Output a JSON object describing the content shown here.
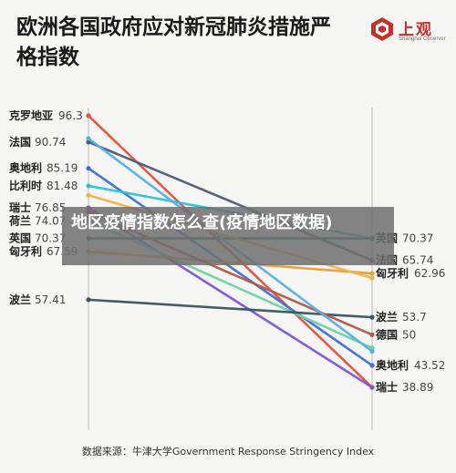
{
  "header": {
    "title": "欧洲各国政府应对新冠肺炎措施严格指数"
  },
  "logo": {
    "name": "上观",
    "subtitle": "Shanghai Observer"
  },
  "overlay": {
    "text": "地区疫情指数怎么查(疫情地区数据)"
  },
  "footer": {
    "source": "数据来源：牛津大学Government Response Stringency Index"
  },
  "colors": {
    "axis": "#bcbcbc",
    "text": "#222222",
    "value_text": "#444444"
  },
  "chart_data": {
    "type": "slope",
    "title": "欧洲各国政府应对新冠肺炎措施严格指数",
    "ylim": [
      35,
      100
    ],
    "series": [
      {
        "name": "克罗地亚",
        "start": 96.3,
        "end": 38.89,
        "end_label": "瑞士",
        "color": "#e8503a"
      },
      {
        "name": "法国",
        "start": 90.74,
        "end": 65.74,
        "end_label": "法国",
        "color": "#4d5d78"
      },
      {
        "name": "奥地利",
        "start": 85.19,
        "end": 43.52,
        "end_label": "奥地利",
        "color": "#3f6fd8"
      },
      {
        "name": "比利时",
        "start": 81.48,
        "end": 70.37,
        "end_label": "英国",
        "color": "#27c4d9"
      },
      {
        "name": "瑞士",
        "start": 76.85,
        "end": 38.89,
        "end_label": "瑞士",
        "color": "#7b58d8"
      },
      {
        "name": "荷兰",
        "start": 74.07,
        "end": 47.22,
        "end_label": "",
        "color": "#6dd3a3"
      },
      {
        "name": "英国",
        "start": 70.37,
        "end": 70.37,
        "end_label": "英国",
        "color": "#2f6e63"
      },
      {
        "name": "匈牙利",
        "start": 67.59,
        "end": 62.96,
        "end_label": "匈牙利",
        "color": "#e89f3a"
      },
      {
        "name": "波兰",
        "start": 57.41,
        "end": 53.7,
        "end_label": "波兰",
        "color": "#3d5560"
      },
      {
        "name": "德国",
        "start": 76.0,
        "end": 50.0,
        "end_label": "德国",
        "color": "#b35a47"
      },
      {
        "name": "",
        "start": 91.5,
        "end": 46.5,
        "end_label": "",
        "color": "#55b1e8"
      },
      {
        "name": "",
        "start": 79.5,
        "end": 62.0,
        "end_label": "",
        "color": "#f0b44a"
      }
    ],
    "left_labels": [
      {
        "name": "克罗地亚",
        "value": "96.3"
      },
      {
        "name": "法国",
        "value": "90.74"
      },
      {
        "name": "奥地利",
        "value": "85.19"
      },
      {
        "name": "比利时",
        "value": "81.48"
      },
      {
        "name": "瑞士",
        "value": "76.85"
      },
      {
        "name": "荷兰",
        "value": "74.07"
      },
      {
        "name": "英国",
        "value": "70.37"
      },
      {
        "name": "匈牙利",
        "value": "67.59"
      },
      {
        "name": "波兰",
        "value": "57.41"
      }
    ],
    "right_labels": [
      {
        "name": "英国",
        "value": "70.37"
      },
      {
        "name": "法国",
        "value": "65.74"
      },
      {
        "name": "匈牙利",
        "value": "62.96"
      },
      {
        "name": "波兰",
        "value": "53.7"
      },
      {
        "name": "德国",
        "value": "50"
      },
      {
        "name": "奥地利",
        "value": "43.52"
      },
      {
        "name": "瑞士",
        "value": "38.89"
      }
    ]
  }
}
